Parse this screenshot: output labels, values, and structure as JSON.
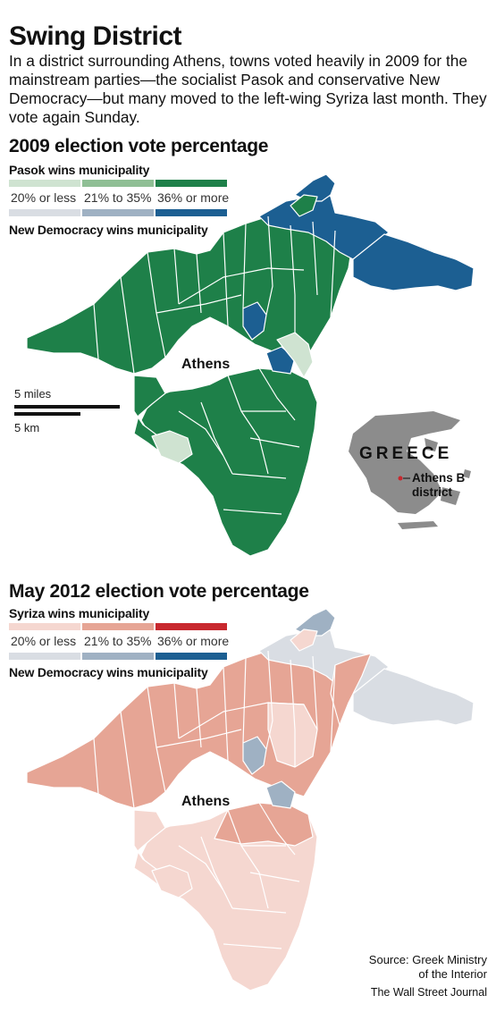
{
  "title": "Swing District",
  "intro": "In a district surrounding Athens, towns voted heavily in 2009 for the mainstream parties—the socialist Pasok and conservative New Democracy—but many moved to the left-wing Syriza last month. They vote again Sunday.",
  "map2009": {
    "heading": "2009 election vote percentage",
    "party_top": "Pasok wins municipality",
    "party_bottom": "New Democracy wins municipality",
    "bins": [
      "20% or less",
      "21% to 35%",
      "36% or more"
    ],
    "top_colors": [
      "#cfe3d1",
      "#8fbf95",
      "#1e8049"
    ],
    "bottom_colors": [
      "#d9dde3",
      "#9fb1c3",
      "#1c5f92"
    ],
    "city_label": "Athens",
    "scale_miles": "5 miles",
    "scale_km": "5 km",
    "country_label": "GREECE",
    "district_label_1": "Athens B",
    "district_label_2": "district"
  },
  "map2012": {
    "heading": "May 2012 election vote percentage",
    "party_top": "Syriza wins municipality",
    "party_bottom": "New Democracy wins municipality",
    "bins": [
      "20% or less",
      "21% to 35%",
      "36% or more"
    ],
    "top_colors": [
      "#f5d7d0",
      "#e6a595",
      "#c8282e"
    ],
    "bottom_colors": [
      "#d9dde3",
      "#9fb1c3",
      "#1c5f92"
    ],
    "city_label": "Athens"
  },
  "source_line1": "Source: Greek Ministry",
  "source_line2": "of the Interior",
  "credit": "The Wall Street Journal"
}
